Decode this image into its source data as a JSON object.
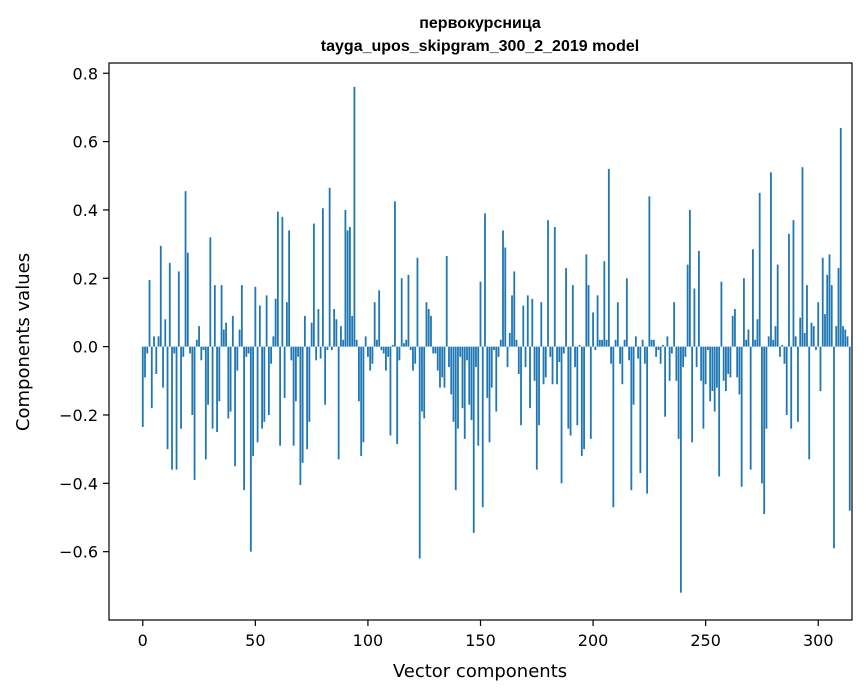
{
  "chart_data": {
    "type": "bar",
    "title": "первокурсница",
    "subtitle": "tayga_upos_skipgram_300_2_2019 model",
    "xlabel": "Vector components",
    "ylabel": "Components values",
    "xlim": [
      -15,
      315
    ],
    "ylim": [
      -0.8,
      0.83
    ],
    "x_ticks": [
      0,
      50,
      100,
      150,
      200,
      250,
      300
    ],
    "x_tick_labels": [
      "0",
      "50",
      "100",
      "150",
      "200",
      "250",
      "300"
    ],
    "y_ticks": [
      -0.6,
      -0.4,
      -0.2,
      0.0,
      0.2,
      0.4,
      0.6,
      0.8
    ],
    "y_tick_labels": [
      "−0.6",
      "−0.4",
      "−0.2",
      "0.0",
      "0.2",
      "0.4",
      "0.6",
      "0.8"
    ],
    "bar_color": "#1f77b4",
    "grid": false,
    "values": [
      -0.235,
      -0.09,
      -0.02,
      0.195,
      -0.18,
      0.03,
      -0.08,
      0.03,
      0.295,
      -0.12,
      0.08,
      -0.3,
      0.245,
      -0.36,
      -0.02,
      -0.36,
      0.22,
      -0.24,
      -0.03,
      0.455,
      0.275,
      -0.02,
      -0.2,
      -0.39,
      0.02,
      0.06,
      -0.04,
      -0.01,
      -0.33,
      -0.17,
      0.32,
      -0.24,
      0.18,
      -0.25,
      -0.16,
      0.18,
      0.05,
      0.07,
      -0.21,
      -0.19,
      0.09,
      -0.35,
      -0.07,
      0.05,
      0.18,
      -0.42,
      -0.03,
      -0.02,
      -0.6,
      -0.32,
      0.175,
      -0.28,
      0.12,
      -0.24,
      -0.22,
      0.15,
      -0.2,
      -0.05,
      0.03,
      0.14,
      0.395,
      -0.29,
      0.38,
      -0.15,
      0.13,
      0.34,
      -0.04,
      -0.29,
      -0.16,
      -0.03,
      -0.405,
      -0.34,
      0.09,
      -0.3,
      -0.22,
      0.07,
      0.36,
      -0.04,
      0.11,
      -0.035,
      0.405,
      -0.17,
      -0.01,
      0.465,
      -0.01,
      0.11,
      0.08,
      -0.33,
      0.06,
      0.02,
      0.4,
      0.34,
      0.35,
      0.09,
      0.76,
      0.02,
      -0.16,
      -0.32,
      -0.28,
      0.03,
      -0.03,
      -0.07,
      -0.05,
      0.13,
      0.02,
      0.165,
      -0.01,
      -0.02,
      -0.07,
      -0.03,
      -0.26,
      0.005,
      0.425,
      -0.285,
      -0.04,
      0.2,
      0.01,
      0.02,
      0.21,
      -0.01,
      -0.07,
      -0.05,
      0.26,
      -0.62,
      -0.19,
      -0.21,
      0.13,
      0.11,
      0.09,
      -0.02,
      -0.02,
      -0.07,
      -0.12,
      -0.09,
      -0.12,
      0.265,
      -0.06,
      -0.14,
      -0.22,
      -0.42,
      -0.24,
      -0.03,
      -0.18,
      -0.27,
      -0.04,
      -0.17,
      -0.215,
      -0.545,
      -0.06,
      -0.29,
      0.19,
      -0.47,
      0.39,
      -0.15,
      -0.28,
      -0.12,
      -0.01,
      -0.19,
      -0.03,
      0.02,
      0.34,
      0.29,
      -0.06,
      0.04,
      0.15,
      0.22,
      0.02,
      -0.08,
      -0.23,
      0.12,
      -0.06,
      0.15,
      -0.18,
      0.14,
      -0.1,
      -0.36,
      -0.23,
      0.13,
      -0.11,
      -0.09,
      0.37,
      -0.03,
      -0.11,
      0.35,
      -0.11,
      -0.045,
      -0.4,
      -0.02,
      0.23,
      -0.24,
      -0.26,
      0.18,
      -0.06,
      -0.23,
      0.005,
      -0.32,
      -0.3,
      0.27,
      0.18,
      -0.27,
      0.1,
      -0.01,
      0.15,
      0.02,
      0.02,
      0.25,
      0.02,
      0.52,
      -0.05,
      -0.47,
      0.02,
      0.13,
      -0.05,
      -0.11,
      0.02,
      0.2,
      -0.04,
      -0.42,
      -0.17,
      0.03,
      -0.035,
      -0.37,
      0.02,
      -0.05,
      -0.43,
      0.44,
      0.02,
      0.02,
      -0.03,
      -0.01,
      -0.05,
      0.005,
      -0.205,
      0.03,
      -0.1,
      -0.02,
      0.13,
      -0.1,
      -0.27,
      -0.72,
      -0.06,
      -0.03,
      0.24,
      0.4,
      -0.28,
      0.17,
      -0.06,
      0.28,
      -0.1,
      -0.24,
      -0.11,
      -0.01,
      -0.16,
      -0.13,
      -0.19,
      -0.12,
      -0.38,
      0.19,
      -0.1,
      -0.13,
      -0.08,
      -0.09,
      0.09,
      0.11,
      -0.09,
      -0.14,
      -0.41,
      0.2,
      0.02,
      0.05,
      -0.36,
      0.285,
      0.02,
      0.08,
      0.45,
      -0.4,
      -0.49,
      -0.24,
      0.03,
      0.51,
      0.02,
      0.06,
      0.24,
      -0.03,
      0.005,
      -0.05,
      -0.2,
      0.33,
      -0.24,
      0.37,
      0.03,
      -0.22,
      0.085,
      0.525,
      0.04,
      0.18,
      -0.33,
      0.07,
      0.06,
      -0.01,
      0.13,
      -0.13,
      0.26,
      0.095,
      0.21,
      0.27,
      0.18,
      -0.59,
      0.06,
      0.23,
      0.64,
      0.06,
      0.05,
      0.03,
      -0.48
    ]
  }
}
